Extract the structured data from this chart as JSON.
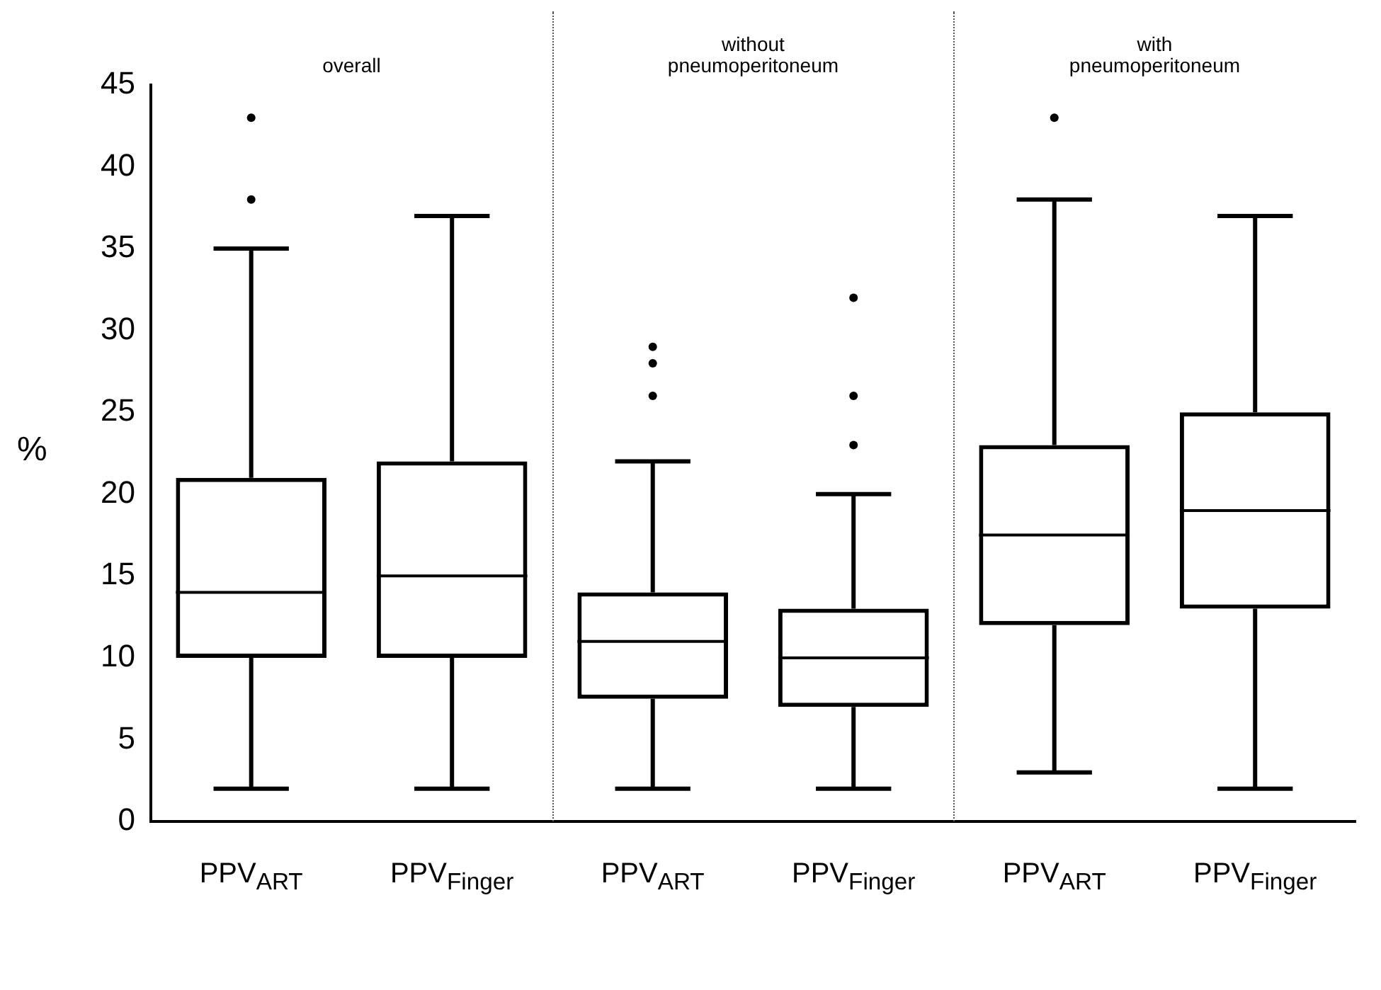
{
  "chart_data": {
    "type": "box",
    "categories": [
      "PPV$_{ART}$",
      "PPV$_{Finger}$",
      "PPV$_{ART}$",
      "PPV$_{Finger}$",
      "PPV$_{ART}$",
      "PPV$_{Finger}$"
    ],
    "boxes": [
      {
        "low": 2,
        "q1": 10,
        "median": 14,
        "q3": 21,
        "high": 35,
        "outliers": [
          38,
          43
        ]
      },
      {
        "low": 2,
        "q1": 10,
        "median": 15,
        "q3": 22,
        "high": 37
      },
      {
        "low": 2,
        "q1": 7.5,
        "median": 11,
        "q3": 14,
        "high": 22,
        "outliers": [
          26,
          28,
          29
        ]
      },
      {
        "low": 2,
        "q1": 7,
        "median": 10,
        "q3": 13,
        "high": 20,
        "outliers": [
          23,
          26,
          32
        ]
      },
      {
        "low": 3,
        "q1": 12,
        "median": 17.5,
        "q3": 23,
        "high": 38,
        "outliers": [
          43
        ]
      },
      {
        "low": 2,
        "q1": 13,
        "median": 19,
        "q3": 25,
        "high": 37
      }
    ],
    "ylabel": "%",
    "annotations": [
      "overall",
      "without pneumoperitoneum",
      "with pneumoperitoneum"
    ],
    "ylim": [
      0,
      45
    ],
    "yticks": [
      0,
      5,
      10,
      15,
      20,
      25,
      30,
      35,
      40,
      45
    ]
  }
}
